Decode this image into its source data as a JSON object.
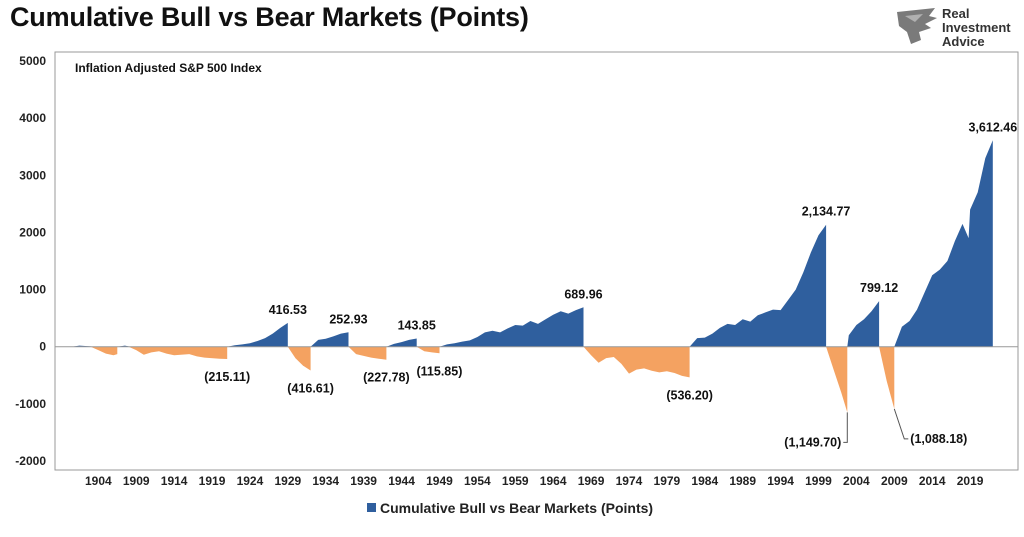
{
  "header": {
    "title": "Cumulative Bull vs Bear Markets (Points)",
    "logo_line1": "Real",
    "logo_line2": "Investment",
    "logo_line3": "Advice"
  },
  "colors": {
    "bull": "#2f5f9e",
    "bear": "#f4a261",
    "frame": "#999999"
  },
  "chart_data": {
    "type": "area",
    "title": "Cumulative Bull vs Bear Markets (Points)",
    "subtitle": "Inflation Adjusted S&P 500 Index",
    "ylim": [
      -2000,
      5000
    ],
    "yticks": [
      "5000",
      "4000",
      "3000",
      "2000",
      "1000",
      "0",
      "-1000",
      "-2000"
    ],
    "ytick_values": [
      5000,
      4000,
      3000,
      2000,
      1000,
      0,
      -1000,
      -2000
    ],
    "xlim": [
      1900,
      2024
    ],
    "xticks": [
      "1904",
      "1909",
      "1914",
      "1919",
      "1924",
      "1929",
      "1934",
      "1939",
      "1944",
      "1949",
      "1954",
      "1959",
      "1964",
      "1969",
      "1974",
      "1979",
      "1984",
      "1989",
      "1994",
      "1999",
      "2004",
      "2009",
      "2014",
      "2019"
    ],
    "xtick_values": [
      1904,
      1909,
      1914,
      1919,
      1924,
      1929,
      1934,
      1939,
      1944,
      1949,
      1954,
      1959,
      1964,
      1969,
      1974,
      1979,
      1984,
      1989,
      1994,
      1999,
      2004,
      2009,
      2014,
      2019
    ],
    "legend": "Cumulative Bull vs Bear Markets (Points)",
    "legend_position": "bottom",
    "grid": false,
    "segments": [
      {
        "kind": "bull",
        "points": [
          [
            1900.5,
            0
          ],
          [
            1901.5,
            20
          ],
          [
            1902.5,
            10
          ],
          [
            1903,
            5
          ]
        ]
      },
      {
        "kind": "bear",
        "points": [
          [
            1903,
            0
          ],
          [
            1904,
            -60
          ],
          [
            1905,
            -120
          ],
          [
            1906,
            -150
          ],
          [
            1906.5,
            -130
          ]
        ]
      },
      {
        "kind": "bull",
        "points": [
          [
            1906.5,
            0
          ],
          [
            1907.5,
            20
          ],
          [
            1908,
            5
          ]
        ]
      },
      {
        "kind": "bear",
        "points": [
          [
            1908,
            0
          ],
          [
            1909,
            -60
          ],
          [
            1910,
            -140
          ],
          [
            1911,
            -100
          ],
          [
            1912,
            -80
          ],
          [
            1913,
            -120
          ],
          [
            1914,
            -150
          ],
          [
            1916,
            -130
          ],
          [
            1917,
            -170
          ],
          [
            1918,
            -190
          ],
          [
            1920,
            -210
          ],
          [
            1921,
            -215.11
          ]
        ]
      },
      {
        "kind": "bull",
        "points": [
          [
            1921,
            0
          ],
          [
            1922,
            25
          ],
          [
            1923,
            40
          ],
          [
            1924,
            60
          ],
          [
            1925,
            100
          ],
          [
            1926,
            150
          ],
          [
            1927,
            230
          ],
          [
            1928,
            330
          ],
          [
            1929,
            416.53
          ]
        ]
      },
      {
        "kind": "bear",
        "points": [
          [
            1929,
            0
          ],
          [
            1930,
            -200
          ],
          [
            1931,
            -330
          ],
          [
            1932,
            -416.61
          ]
        ]
      },
      {
        "kind": "bull",
        "points": [
          [
            1932,
            0
          ],
          [
            1933,
            120
          ],
          [
            1934,
            140
          ],
          [
            1935,
            180
          ],
          [
            1936,
            230
          ],
          [
            1937,
            252.93
          ]
        ]
      },
      {
        "kind": "bear",
        "points": [
          [
            1937,
            0
          ],
          [
            1938,
            -130
          ],
          [
            1939,
            -160
          ],
          [
            1940,
            -190
          ],
          [
            1941,
            -210
          ],
          [
            1942,
            -227.78
          ]
        ]
      },
      {
        "kind": "bull",
        "points": [
          [
            1942,
            0
          ],
          [
            1943,
            50
          ],
          [
            1944,
            80
          ],
          [
            1945,
            120
          ],
          [
            1946,
            143.85
          ]
        ]
      },
      {
        "kind": "bear",
        "points": [
          [
            1946,
            0
          ],
          [
            1947,
            -80
          ],
          [
            1948,
            -100
          ],
          [
            1949,
            -115.85
          ]
        ]
      },
      {
        "kind": "bull",
        "points": [
          [
            1949,
            0
          ],
          [
            1950,
            40
          ],
          [
            1951,
            60
          ],
          [
            1952,
            90
          ],
          [
            1953,
            110
          ],
          [
            1954,
            170
          ],
          [
            1955,
            250
          ],
          [
            1956,
            280
          ],
          [
            1957,
            250
          ],
          [
            1958,
            320
          ],
          [
            1959,
            380
          ],
          [
            1960,
            370
          ],
          [
            1961,
            450
          ],
          [
            1962,
            400
          ],
          [
            1963,
            480
          ],
          [
            1964,
            560
          ],
          [
            1965,
            620
          ],
          [
            1966,
            580
          ],
          [
            1967,
            640
          ],
          [
            1968,
            689.96
          ]
        ]
      },
      {
        "kind": "bear",
        "points": [
          [
            1968,
            0
          ],
          [
            1969,
            -150
          ],
          [
            1970,
            -280
          ],
          [
            1971,
            -200
          ],
          [
            1972,
            -180
          ],
          [
            1973,
            -300
          ],
          [
            1974,
            -470
          ],
          [
            1975,
            -400
          ],
          [
            1976,
            -380
          ],
          [
            1977,
            -420
          ],
          [
            1978,
            -450
          ],
          [
            1979,
            -430
          ],
          [
            1980,
            -460
          ],
          [
            1981,
            -510
          ],
          [
            1982,
            -536.2
          ]
        ]
      },
      {
        "kind": "bull",
        "points": [
          [
            1982,
            0
          ],
          [
            1983,
            150
          ],
          [
            1984,
            160
          ],
          [
            1985,
            230
          ],
          [
            1986,
            330
          ],
          [
            1987,
            400
          ],
          [
            1988,
            380
          ],
          [
            1989,
            480
          ],
          [
            1990,
            440
          ],
          [
            1991,
            550
          ],
          [
            1992,
            600
          ],
          [
            1993,
            650
          ],
          [
            1994,
            640
          ],
          [
            1995,
            820
          ],
          [
            1996,
            1000
          ],
          [
            1997,
            1300
          ],
          [
            1998,
            1650
          ],
          [
            1999,
            1950
          ],
          [
            2000,
            2134.77
          ]
        ]
      },
      {
        "kind": "bear",
        "points": [
          [
            2000,
            0
          ],
          [
            2001,
            -400
          ],
          [
            2002,
            -800
          ],
          [
            2002.8,
            -1149.7
          ]
        ]
      },
      {
        "kind": "bull",
        "points": [
          [
            2002.8,
            0
          ],
          [
            2003,
            200
          ],
          [
            2004,
            380
          ],
          [
            2005,
            480
          ],
          [
            2006,
            620
          ],
          [
            2007,
            799.12
          ]
        ]
      },
      {
        "kind": "bear",
        "points": [
          [
            2007,
            0
          ],
          [
            2008,
            -600
          ],
          [
            2009,
            -1088.18
          ]
        ]
      },
      {
        "kind": "bull",
        "points": [
          [
            2009,
            0
          ],
          [
            2010,
            350
          ],
          [
            2011,
            450
          ],
          [
            2012,
            650
          ],
          [
            2013,
            950
          ],
          [
            2014,
            1250
          ],
          [
            2015,
            1350
          ],
          [
            2016,
            1500
          ],
          [
            2017,
            1850
          ],
          [
            2018,
            2150
          ],
          [
            2018.8,
            1900
          ],
          [
            2019,
            2400
          ],
          [
            2020,
            2700
          ],
          [
            2021,
            3300
          ],
          [
            2022,
            3612.46
          ]
        ]
      }
    ],
    "annotations": [
      {
        "text": "416.53",
        "x": 1929,
        "y": 416.53,
        "pos": "above"
      },
      {
        "text": "(416.61)",
        "x": 1932,
        "y": -416.61,
        "pos": "below"
      },
      {
        "text": "252.93",
        "x": 1937,
        "y": 252.93,
        "pos": "above"
      },
      {
        "text": "(227.78)",
        "x": 1942,
        "y": -227.78,
        "pos": "below"
      },
      {
        "text": "143.85",
        "x": 1946,
        "y": 143.85,
        "pos": "above"
      },
      {
        "text": "(115.85)",
        "x": 1949,
        "y": -115.85,
        "pos": "below"
      },
      {
        "text": "(215.11)",
        "x": 1921,
        "y": -215.11,
        "pos": "below"
      },
      {
        "text": "689.96",
        "x": 1968,
        "y": 689.96,
        "pos": "above"
      },
      {
        "text": "(536.20)",
        "x": 1982,
        "y": -536.2,
        "pos": "below"
      },
      {
        "text": "2,134.77",
        "x": 2000,
        "y": 2134.77,
        "pos": "above"
      },
      {
        "text": "(1,149.70)",
        "x": 2002.8,
        "y": -1149.7,
        "pos": "leader"
      },
      {
        "text": "799.12",
        "x": 2007,
        "y": 799.12,
        "pos": "above"
      },
      {
        "text": "(1,088.18)",
        "x": 2009,
        "y": -1088.18,
        "pos": "leader"
      },
      {
        "text": "3,612.46",
        "x": 2022,
        "y": 3612.46,
        "pos": "above"
      }
    ]
  }
}
